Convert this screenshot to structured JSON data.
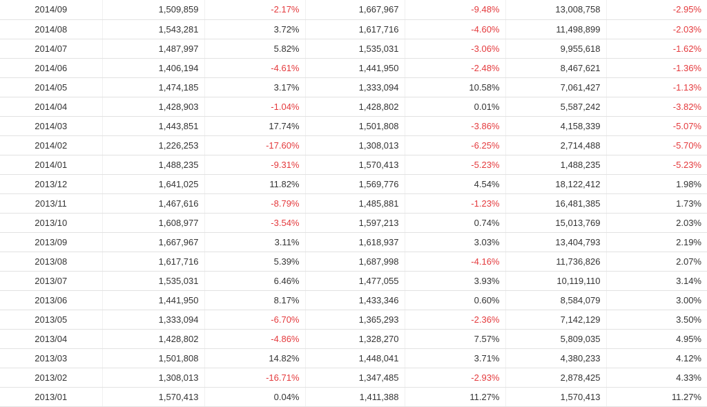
{
  "colors": {
    "negative": "#e4393c",
    "text": "#333333",
    "border": "#e2e2e2"
  },
  "rows": [
    {
      "month": "2014/09",
      "v1": "1,509,859",
      "p1": "-2.17%",
      "v2": "1,667,967",
      "p2": "-9.48%",
      "v3": "13,008,758",
      "p3": "-2.95%"
    },
    {
      "month": "2014/08",
      "v1": "1,543,281",
      "p1": "3.72%",
      "v2": "1,617,716",
      "p2": "-4.60%",
      "v3": "11,498,899",
      "p3": "-2.03%"
    },
    {
      "month": "2014/07",
      "v1": "1,487,997",
      "p1": "5.82%",
      "v2": "1,535,031",
      "p2": "-3.06%",
      "v3": "9,955,618",
      "p3": "-1.62%"
    },
    {
      "month": "2014/06",
      "v1": "1,406,194",
      "p1": "-4.61%",
      "v2": "1,441,950",
      "p2": "-2.48%",
      "v3": "8,467,621",
      "p3": "-1.36%"
    },
    {
      "month": "2014/05",
      "v1": "1,474,185",
      "p1": "3.17%",
      "v2": "1,333,094",
      "p2": "10.58%",
      "v3": "7,061,427",
      "p3": "-1.13%"
    },
    {
      "month": "2014/04",
      "v1": "1,428,903",
      "p1": "-1.04%",
      "v2": "1,428,802",
      "p2": "0.01%",
      "v3": "5,587,242",
      "p3": "-3.82%"
    },
    {
      "month": "2014/03",
      "v1": "1,443,851",
      "p1": "17.74%",
      "v2": "1,501,808",
      "p2": "-3.86%",
      "v3": "4,158,339",
      "p3": "-5.07%"
    },
    {
      "month": "2014/02",
      "v1": "1,226,253",
      "p1": "-17.60%",
      "v2": "1,308,013",
      "p2": "-6.25%",
      "v3": "2,714,488",
      "p3": "-5.70%"
    },
    {
      "month": "2014/01",
      "v1": "1,488,235",
      "p1": "-9.31%",
      "v2": "1,570,413",
      "p2": "-5.23%",
      "v3": "1,488,235",
      "p3": "-5.23%"
    },
    {
      "month": "2013/12",
      "v1": "1,641,025",
      "p1": "11.82%",
      "v2": "1,569,776",
      "p2": "4.54%",
      "v3": "18,122,412",
      "p3": "1.98%"
    },
    {
      "month": "2013/11",
      "v1": "1,467,616",
      "p1": "-8.79%",
      "v2": "1,485,881",
      "p2": "-1.23%",
      "v3": "16,481,385",
      "p3": "1.73%"
    },
    {
      "month": "2013/10",
      "v1": "1,608,977",
      "p1": "-3.54%",
      "v2": "1,597,213",
      "p2": "0.74%",
      "v3": "15,013,769",
      "p3": "2.03%"
    },
    {
      "month": "2013/09",
      "v1": "1,667,967",
      "p1": "3.11%",
      "v2": "1,618,937",
      "p2": "3.03%",
      "v3": "13,404,793",
      "p3": "2.19%"
    },
    {
      "month": "2013/08",
      "v1": "1,617,716",
      "p1": "5.39%",
      "v2": "1,687,998",
      "p2": "-4.16%",
      "v3": "11,736,826",
      "p3": "2.07%"
    },
    {
      "month": "2013/07",
      "v1": "1,535,031",
      "p1": "6.46%",
      "v2": "1,477,055",
      "p2": "3.93%",
      "v3": "10,119,110",
      "p3": "3.14%"
    },
    {
      "month": "2013/06",
      "v1": "1,441,950",
      "p1": "8.17%",
      "v2": "1,433,346",
      "p2": "0.60%",
      "v3": "8,584,079",
      "p3": "3.00%"
    },
    {
      "month": "2013/05",
      "v1": "1,333,094",
      "p1": "-6.70%",
      "v2": "1,365,293",
      "p2": "-2.36%",
      "v3": "7,142,129",
      "p3": "3.50%"
    },
    {
      "month": "2013/04",
      "v1": "1,428,802",
      "p1": "-4.86%",
      "v2": "1,328,270",
      "p2": "7.57%",
      "v3": "5,809,035",
      "p3": "4.95%"
    },
    {
      "month": "2013/03",
      "v1": "1,501,808",
      "p1": "14.82%",
      "v2": "1,448,041",
      "p2": "3.71%",
      "v3": "4,380,233",
      "p3": "4.12%"
    },
    {
      "month": "2013/02",
      "v1": "1,308,013",
      "p1": "-16.71%",
      "v2": "1,347,485",
      "p2": "-2.93%",
      "v3": "2,878,425",
      "p3": "4.33%"
    },
    {
      "month": "2013/01",
      "v1": "1,570,413",
      "p1": "0.04%",
      "v2": "1,411,388",
      "p2": "11.27%",
      "v3": "1,570,413",
      "p3": "11.27%"
    }
  ]
}
